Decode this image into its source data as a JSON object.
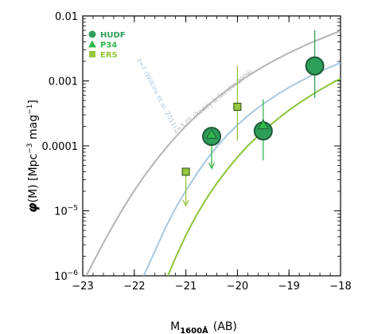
{
  "chart_data": {
    "type": "scatter",
    "title": "",
    "xlabel_main": "M",
    "xlabel_sub": "1600Å",
    "xlabel_tail": "(AB)",
    "ylabel_phi": "φ",
    "ylabel_rest": "(M)  [Mpc",
    "ylabel_sup1": "−3",
    "ylabel_mid": " mag",
    "ylabel_sup2": "−1",
    "ylabel_end": "]",
    "xlim": [
      -23,
      -18
    ],
    "ylim": [
      1e-06,
      0.01
    ],
    "yscale": "log",
    "xticks": [
      {
        "value": -23,
        "label": "−23"
      },
      {
        "value": -22,
        "label": "−22"
      },
      {
        "value": -21,
        "label": "−21"
      },
      {
        "value": -20,
        "label": "−20"
      },
      {
        "value": -19,
        "label": "−19"
      },
      {
        "value": -18,
        "label": "−18"
      }
    ],
    "yticks": [
      {
        "value": 0.01,
        "label": "0.01"
      },
      {
        "value": 0.001,
        "label": "0.001"
      },
      {
        "value": 0.0001,
        "label": "0.0001"
      },
      {
        "value": 1e-05,
        "base": "10",
        "exp": "−5"
      },
      {
        "value": 1e-06,
        "base": "10",
        "exp": "−6"
      }
    ],
    "legend": {
      "placement": "top-left",
      "items": [
        {
          "label": "HUDF",
          "marker": "circle",
          "color": "#2e9e5b"
        },
        {
          "label": "P34",
          "marker": "triangle",
          "color": "#2fb84a"
        },
        {
          "label": "ERS",
          "marker": "square",
          "color": "#96c63c"
        }
      ]
    },
    "curves": [
      {
        "label": "z≈3.05 (Reddy & Steidel 2009)",
        "color": "#b4b4b4",
        "points": [
          [
            -22.93,
            1e-06
          ],
          [
            -22.8,
            1.6e-06
          ],
          [
            -22.6,
            3.2e-06
          ],
          [
            -22.4,
            6.2e-06
          ],
          [
            -22.2,
            1.15e-05
          ],
          [
            -22.0,
            2.05e-05
          ],
          [
            -21.8,
            3.5e-05
          ],
          [
            -21.6,
            5.7e-05
          ],
          [
            -21.4,
            9e-05
          ],
          [
            -21.2,
            0.000137
          ],
          [
            -21.0,
            0.000202
          ],
          [
            -20.8,
            0.000289
          ],
          [
            -20.6,
            0.000402
          ],
          [
            -20.4,
            0.000545
          ],
          [
            -20.2,
            0.000722
          ],
          [
            -20.0,
            0.000935
          ],
          [
            -19.8,
            0.00119
          ],
          [
            -19.6,
            0.00149
          ],
          [
            -19.4,
            0.00184
          ],
          [
            -19.2,
            0.00224
          ],
          [
            -19.0,
            0.0027
          ],
          [
            -18.8,
            0.0032
          ],
          [
            -18.6,
            0.0038
          ],
          [
            -18.4,
            0.0044
          ],
          [
            -18.2,
            0.0051
          ],
          [
            -18.0,
            0.0059
          ]
        ]
      },
      {
        "label": "z≈7 (Wilkins et al. 2011)",
        "color": "#a8c8e0",
        "points": [
          [
            -21.82,
            1e-06
          ],
          [
            -21.6,
            2.4e-06
          ],
          [
            -21.4,
            5.4e-06
          ],
          [
            -21.2,
            1.1e-05
          ],
          [
            -21.0,
            2.05e-05
          ],
          [
            -20.8,
            3.6e-05
          ],
          [
            -20.6,
            6.1e-05
          ],
          [
            -20.4,
            9.7e-05
          ],
          [
            -20.2,
            0.000146
          ],
          [
            -20.0,
            0.000209
          ],
          [
            -19.8,
            0.000289
          ],
          [
            -19.6,
            0.000387
          ],
          [
            -19.4,
            0.000502
          ],
          [
            -19.2,
            0.000638
          ],
          [
            -19.0,
            0.000795
          ],
          [
            -18.8,
            0.00097
          ],
          [
            -18.6,
            0.00117
          ],
          [
            -18.4,
            0.00139
          ],
          [
            -18.2,
            0.00163
          ],
          [
            -18.0,
            0.0019
          ]
        ]
      },
      {
        "label": "",
        "color": "#8cc43c",
        "points": [
          [
            -21.35,
            1e-06
          ],
          [
            -21.2,
            1.9e-06
          ],
          [
            -21.0,
            4.2e-06
          ],
          [
            -20.8,
            8.4e-06
          ],
          [
            -20.6,
            1.55e-05
          ],
          [
            -20.4,
            2.65e-05
          ],
          [
            -20.2,
            4.3e-05
          ],
          [
            -20.0,
            6.7e-05
          ],
          [
            -19.8,
            0.0001
          ],
          [
            -19.6,
            0.000142
          ],
          [
            -19.4,
            0.000198
          ],
          [
            -19.2,
            0.000267
          ],
          [
            -19.0,
            0.000353
          ],
          [
            -18.8,
            0.000457
          ],
          [
            -18.6,
            0.00058
          ],
          [
            -18.4,
            0.000726
          ],
          [
            -18.2,
            0.000895
          ],
          [
            -18.0,
            0.00109
          ]
        ]
      }
    ],
    "series": [
      {
        "name": "HUDF",
        "marker": "circle",
        "color": "#2e9e5b",
        "points": [
          {
            "x": -20.5,
            "y": 0.00014,
            "ylo": 0.00014,
            "yhi": 0.00014
          },
          {
            "x": -19.5,
            "y": 0.00017,
            "ylo": 0.00017,
            "yhi": 0.00017
          },
          {
            "x": -18.5,
            "y": 0.0017,
            "ylo": 0.00055,
            "yhi": 0.006
          }
        ]
      },
      {
        "name": "P34",
        "marker": "triangle",
        "color": "#2fb84a",
        "points": [
          {
            "x": -20.5,
            "y": 0.00015,
            "ylo": 4.5e-05,
            "yhi": 0.00015,
            "upper_limit": true
          },
          {
            "x": -19.5,
            "y": 0.00021,
            "ylo": 6e-05,
            "yhi": 0.00052
          }
        ]
      },
      {
        "name": "ERS",
        "marker": "square",
        "color": "#96c63c",
        "points": [
          {
            "x": -21.0,
            "y": 4e-05,
            "ylo": 1.2e-05,
            "yhi": 4e-05,
            "upper_limit": true
          },
          {
            "x": -20.0,
            "y": 0.0004,
            "ylo": 0.00012,
            "yhi": 0.0017
          }
        ]
      }
    ]
  }
}
